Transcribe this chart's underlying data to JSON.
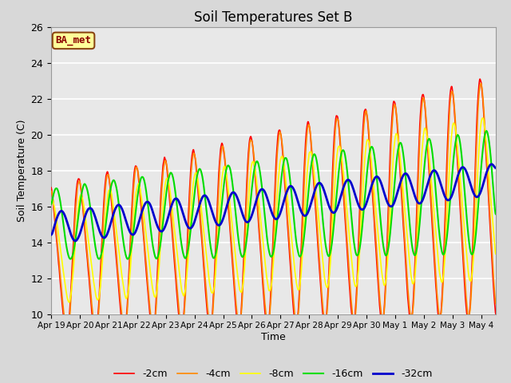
{
  "title": "Soil Temperatures Set B",
  "xlabel": "Time",
  "ylabel": "Soil Temperature (C)",
  "ylim": [
    10,
    26
  ],
  "xlim_end": 15.5,
  "annotation": "BA_met",
  "legend_labels": [
    "-2cm",
    "-4cm",
    "-8cm",
    "-16cm",
    "-32cm"
  ],
  "line_colors": [
    "#ff0000",
    "#ff8800",
    "#ffff00",
    "#00dd00",
    "#0000cc"
  ],
  "line_widths": [
    1.2,
    1.2,
    1.2,
    1.5,
    2.0
  ],
  "fig_bg_color": "#d8d8d8",
  "plot_bg_color": "#e8e8e8",
  "title_fontsize": 12,
  "yticks": [
    10,
    12,
    14,
    16,
    18,
    20,
    22,
    24,
    26
  ],
  "tick_labels": [
    "Apr 19",
    "Apr 20",
    "Apr 21",
    "Apr 22",
    "Apr 23",
    "Apr 24",
    "Apr 25",
    "Apr 26",
    "Apr 27",
    "Apr 28",
    "Apr 29",
    "Apr 30",
    "May 1",
    "May 2",
    "May 3",
    "May 4"
  ]
}
